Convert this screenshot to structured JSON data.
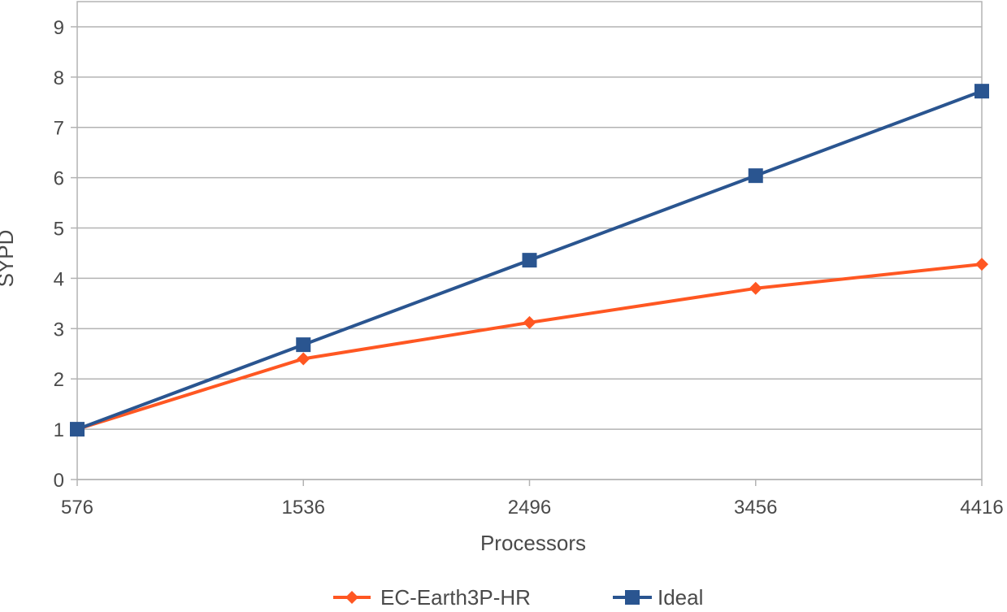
{
  "chart_data": {
    "type": "line",
    "title": "",
    "xlabel": "Processors",
    "ylabel": "SYPD",
    "categories": [
      "576",
      "1536",
      "2496",
      "3456",
      "4416"
    ],
    "x": [
      576,
      1536,
      2496,
      3456,
      4416
    ],
    "ylim": [
      0,
      9.5
    ],
    "yticks": [
      0,
      1,
      2,
      3,
      4,
      5,
      6,
      7,
      8,
      9
    ],
    "grid": true,
    "legend_position": "bottom",
    "series": [
      {
        "name": "EC-Earth3P-HR",
        "values": [
          1.0,
          2.4,
          3.12,
          3.8,
          4.28
        ],
        "color": "#ff5722",
        "marker": "diamond"
      },
      {
        "name": "Ideal",
        "values": [
          1.0,
          2.68,
          4.36,
          6.04,
          7.72
        ],
        "color": "#2a5590",
        "marker": "square"
      }
    ]
  }
}
